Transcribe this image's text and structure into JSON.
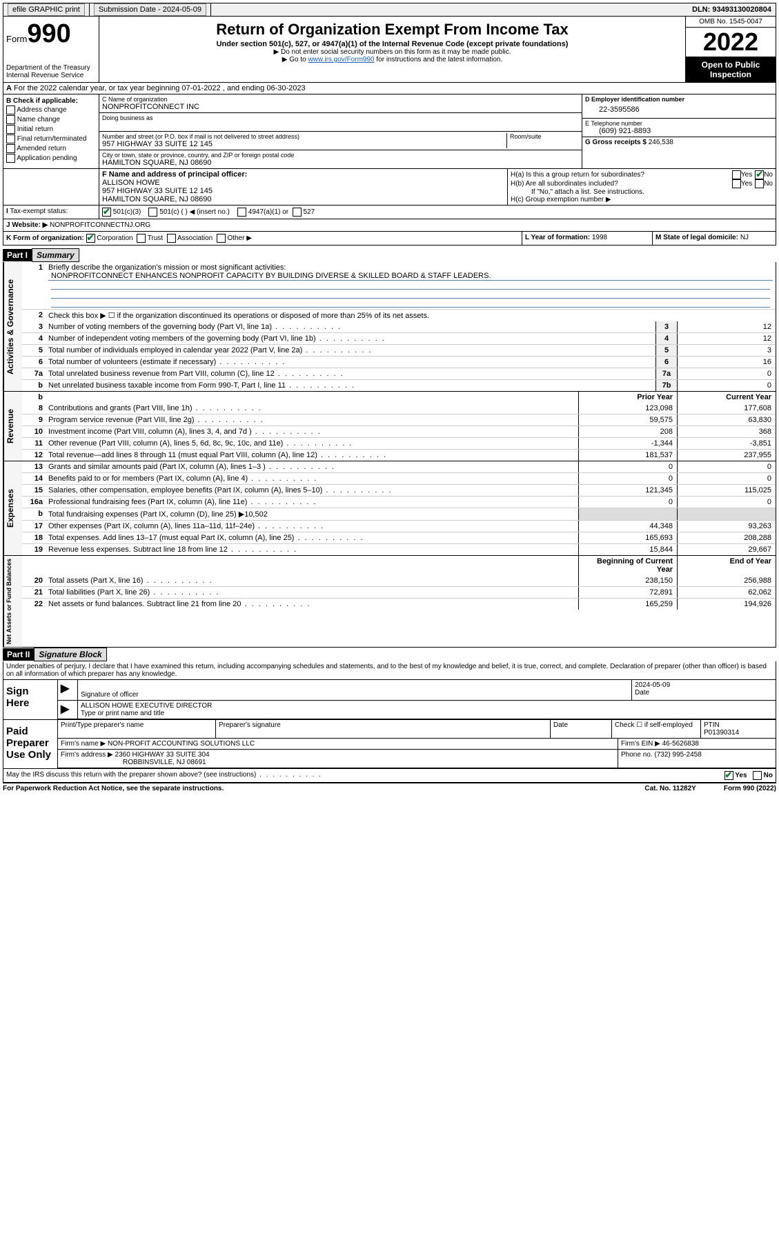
{
  "topbar": {
    "efile": "efile GRAPHIC print",
    "submission_label": "Submission Date - 2024-05-09",
    "dln": "DLN: 93493130020804"
  },
  "header": {
    "form_word": "Form",
    "form_num": "990",
    "dept": "Department of the Treasury",
    "irs": "Internal Revenue Service",
    "title": "Return of Organization Exempt From Income Tax",
    "sub": "Under section 501(c), 527, or 4947(a)(1) of the Internal Revenue Code (except private foundations)",
    "note1": "▶ Do not enter social security numbers on this form as it may be made public.",
    "note2_pre": "▶ Go to ",
    "note2_link": "www.irs.gov/Form990",
    "note2_post": " for instructions and the latest information.",
    "omb": "OMB No. 1545-0047",
    "year": "2022",
    "open": "Open to Public Inspection"
  },
  "sectionA": "For the 2022 calendar year, or tax year beginning 07-01-2022   , and ending 06-30-2023",
  "boxB": {
    "title": "B Check if applicable:",
    "opts": [
      "Address change",
      "Name change",
      "Initial return",
      "Final return/terminated",
      "Amended return",
      "Application pending"
    ]
  },
  "boxC": {
    "name_lbl": "C Name of organization",
    "name": "NONPROFITCONNECT INC",
    "dba_lbl": "Doing business as",
    "addr_lbl": "Number and street (or P.O. box if mail is not delivered to street address)",
    "room_lbl": "Room/suite",
    "addr": "957 HIGHWAY 33 SUITE 12 145",
    "city_lbl": "City or town, state or province, country, and ZIP or foreign postal code",
    "city": "HAMILTON SQUARE, NJ  08690"
  },
  "boxD": {
    "lbl": "D Employer identification number",
    "val": "22-3595586"
  },
  "boxE": {
    "lbl": "E Telephone number",
    "val": "(609) 921-8893"
  },
  "boxG": {
    "lbl": "G Gross receipts $",
    "val": "246,538"
  },
  "boxF": {
    "lbl": "F Name and address of principal officer:",
    "name": "ALLISON HOWE",
    "addr1": "957 HIGHWAY 33 SUITE 12 145",
    "addr2": "HAMILTON SQUARE, NJ  08690"
  },
  "boxH": {
    "ha": "H(a)  Is this a group return for subordinates?",
    "hb": "H(b)  Are all subordinates included?",
    "hb_note": "If \"No,\" attach a list. See instructions.",
    "hc": "H(c)  Group exemption number ▶",
    "yes": "Yes",
    "no": "No"
  },
  "boxI": {
    "lbl": "Tax-exempt status:",
    "o1": "501(c)(3)",
    "o2": "501(c) (  ) ◀ (insert no.)",
    "o3": "4947(a)(1) or",
    "o4": "527"
  },
  "boxJ": {
    "lbl": "Website: ▶",
    "val": "NONPROFITCONNECTNJ.ORG"
  },
  "boxK": {
    "lbl": "K Form of organization:",
    "o1": "Corporation",
    "o2": "Trust",
    "o3": "Association",
    "o4": "Other ▶"
  },
  "boxL": {
    "lbl": "L Year of formation:",
    "val": "1998"
  },
  "boxM": {
    "lbl": "M State of legal domicile:",
    "val": "NJ"
  },
  "part1": {
    "hdr": "Part I",
    "title": "Summary",
    "q1": "Briefly describe the organization's mission or most significant activities:",
    "mission": "NONPROFITCONNECT ENHANCES NONPROFIT CAPACITY BY BUILDING DIVERSE & SKILLED BOARD & STAFF LEADERS.",
    "q2": "Check this box ▶ ☐  if the organization discontinued its operations or disposed of more than 25% of its net assets.",
    "governance": [
      {
        "n": "3",
        "d": "Number of voting members of the governing body (Part VI, line 1a)",
        "b": "3",
        "v": "12"
      },
      {
        "n": "4",
        "d": "Number of independent voting members of the governing body (Part VI, line 1b)",
        "b": "4",
        "v": "12"
      },
      {
        "n": "5",
        "d": "Total number of individuals employed in calendar year 2022 (Part V, line 2a)",
        "b": "5",
        "v": "3"
      },
      {
        "n": "6",
        "d": "Total number of volunteers (estimate if necessary)",
        "b": "6",
        "v": "16"
      },
      {
        "n": "7a",
        "d": "Total unrelated business revenue from Part VIII, column (C), line 12",
        "b": "7a",
        "v": "0"
      },
      {
        "n": "b",
        "d": "Net unrelated business taxable income from Form 990-T, Part I, line 11",
        "b": "7b",
        "v": "0"
      }
    ],
    "col_prior": "Prior Year",
    "col_current": "Current Year",
    "revenue": [
      {
        "n": "8",
        "d": "Contributions and grants (Part VIII, line 1h)",
        "p": "123,098",
        "c": "177,608"
      },
      {
        "n": "9",
        "d": "Program service revenue (Part VIII, line 2g)",
        "p": "59,575",
        "c": "63,830"
      },
      {
        "n": "10",
        "d": "Investment income (Part VIII, column (A), lines 3, 4, and 7d )",
        "p": "208",
        "c": "368"
      },
      {
        "n": "11",
        "d": "Other revenue (Part VIII, column (A), lines 5, 6d, 8c, 9c, 10c, and 11e)",
        "p": "-1,344",
        "c": "-3,851"
      },
      {
        "n": "12",
        "d": "Total revenue—add lines 8 through 11 (must equal Part VIII, column (A), line 12)",
        "p": "181,537",
        "c": "237,955"
      }
    ],
    "expenses": [
      {
        "n": "13",
        "d": "Grants and similar amounts paid (Part IX, column (A), lines 1–3 )",
        "p": "0",
        "c": "0"
      },
      {
        "n": "14",
        "d": "Benefits paid to or for members (Part IX, column (A), line 4)",
        "p": "0",
        "c": "0"
      },
      {
        "n": "15",
        "d": "Salaries, other compensation, employee benefits (Part IX, column (A), lines 5–10)",
        "p": "121,345",
        "c": "115,025"
      },
      {
        "n": "16a",
        "d": "Professional fundraising fees (Part IX, column (A), line 11e)",
        "p": "0",
        "c": "0"
      },
      {
        "n": "b",
        "d": "Total fundraising expenses (Part IX, column (D), line 25) ▶10,502",
        "p": "",
        "c": ""
      },
      {
        "n": "17",
        "d": "Other expenses (Part IX, column (A), lines 11a–11d, 11f–24e)",
        "p": "44,348",
        "c": "93,263"
      },
      {
        "n": "18",
        "d": "Total expenses. Add lines 13–17 (must equal Part IX, column (A), line 25)",
        "p": "165,693",
        "c": "208,288"
      },
      {
        "n": "19",
        "d": "Revenue less expenses. Subtract line 18 from line 12",
        "p": "15,844",
        "c": "29,667"
      }
    ],
    "col_begin": "Beginning of Current Year",
    "col_end": "End of Year",
    "netassets": [
      {
        "n": "20",
        "d": "Total assets (Part X, line 16)",
        "p": "238,150",
        "c": "256,988"
      },
      {
        "n": "21",
        "d": "Total liabilities (Part X, line 26)",
        "p": "72,891",
        "c": "62,062"
      },
      {
        "n": "22",
        "d": "Net assets or fund balances. Subtract line 21 from line 20",
        "p": "165,259",
        "c": "194,926"
      }
    ],
    "vlabels": {
      "gov": "Activities & Governance",
      "rev": "Revenue",
      "exp": "Expenses",
      "net": "Net Assets or Fund Balances"
    }
  },
  "part2": {
    "hdr": "Part II",
    "title": "Signature Block",
    "penalty": "Under penalties of perjury, I declare that I have examined this return, including accompanying schedules and statements, and to the best of my knowledge and belief, it is true, correct, and complete. Declaration of preparer (other than officer) is based on all information of which preparer has any knowledge.",
    "sign_here": "Sign Here",
    "sig_officer": "Signature of officer",
    "date_lbl": "Date",
    "date": "2024-05-09",
    "name_title": "ALLISON HOWE  EXECUTIVE DIRECTOR",
    "type_lbl": "Type or print name and title",
    "paid": "Paid Preparer Use Only",
    "prep_name_lbl": "Print/Type preparer's name",
    "prep_sig_lbl": "Preparer's signature",
    "check_lbl": "Check ☐ if self-employed",
    "ptin_lbl": "PTIN",
    "ptin": "P01390314",
    "firm_name_lbl": "Firm's name  ▶",
    "firm_name": "NON-PROFIT ACCOUNTING SOLUTIONS LLC",
    "firm_ein_lbl": "Firm's EIN ▶",
    "firm_ein": "46-5626838",
    "firm_addr_lbl": "Firm's address ▶",
    "firm_addr": "2360 HIGHWAY 33 SUITE 304",
    "firm_city": "ROBBINSVILLE, NJ  08691",
    "phone_lbl": "Phone no.",
    "phone": "(732) 995-2458",
    "discuss": "May the IRS discuss this return with the preparer shown above? (see instructions)",
    "yes": "Yes",
    "no": "No"
  },
  "footer": {
    "left": "For Paperwork Reduction Act Notice, see the separate instructions.",
    "mid": "Cat. No. 11282Y",
    "right": "Form 990 (2022)"
  }
}
